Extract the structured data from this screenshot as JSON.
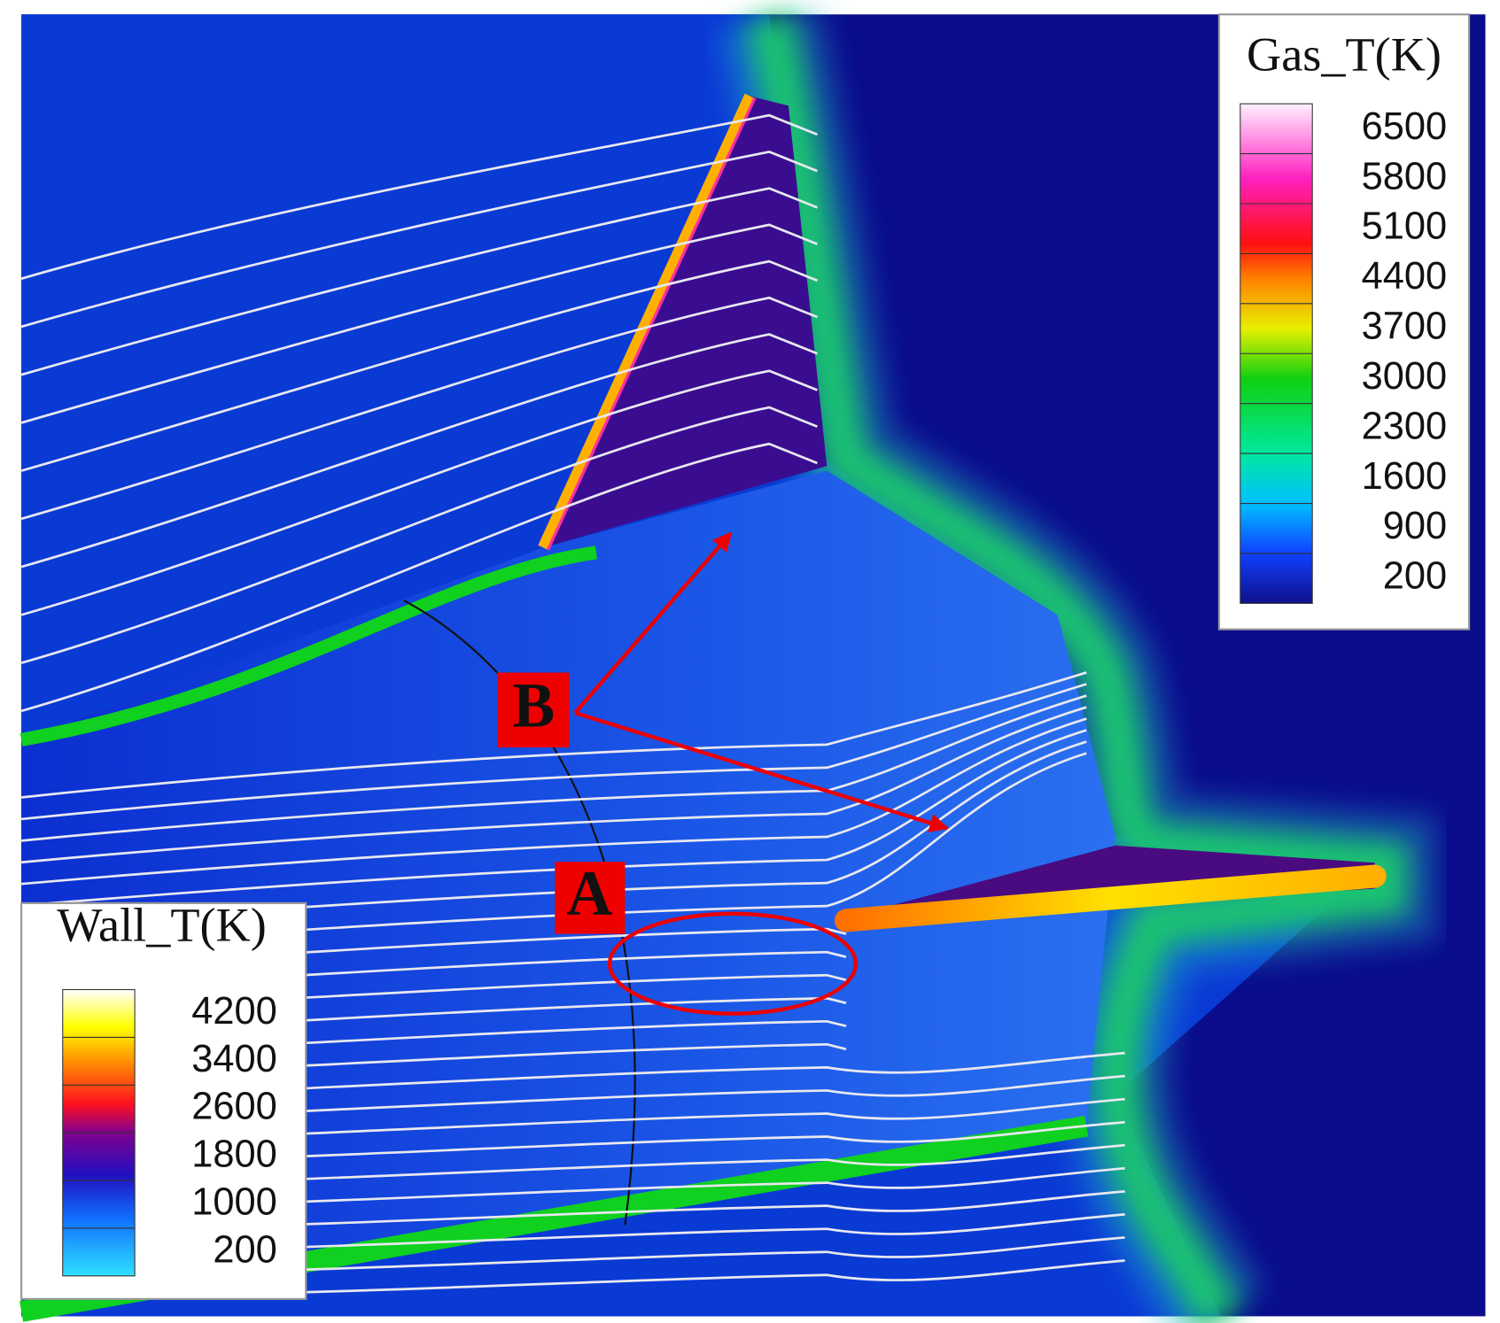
{
  "gas_legend": {
    "title": "Gas_T(K)",
    "ticks": [
      6500,
      5800,
      5100,
      4400,
      3700,
      3000,
      2300,
      1600,
      900,
      200
    ]
  },
  "wall_legend": {
    "title": "Wall_T(K)",
    "ticks": [
      4200,
      3400,
      2600,
      1800,
      1000,
      200
    ]
  },
  "markers": {
    "a": "A",
    "b": "B"
  }
}
